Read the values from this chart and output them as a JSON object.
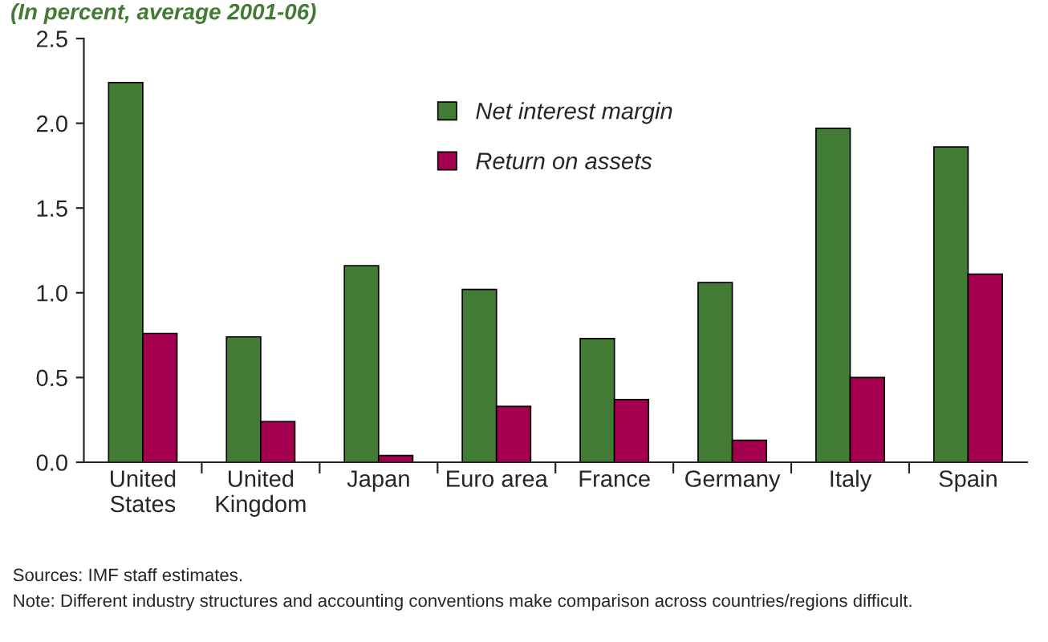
{
  "chart_data": {
    "type": "bar",
    "subtitle": "(In percent, average 2001-06)",
    "categories": [
      "United\nStates",
      "United\nKingdom",
      "Japan",
      "Euro area",
      "France",
      "Germany",
      "Italy",
      "Spain"
    ],
    "series": [
      {
        "name": "Net interest margin",
        "color": "#427b33",
        "values": [
          2.24,
          0.74,
          1.16,
          1.02,
          0.73,
          1.06,
          1.97,
          1.86
        ]
      },
      {
        "name": "Return on assets",
        "color": "#a5004f",
        "values": [
          0.76,
          0.24,
          0.04,
          0.33,
          0.37,
          0.13,
          0.5,
          1.11
        ]
      }
    ],
    "ylim": [
      0,
      2.5
    ],
    "yticks": [
      {
        "value": 0,
        "label": "0.0"
      },
      {
        "value": 0.5,
        "label": "0.5"
      },
      {
        "value": 1,
        "label": "1.0"
      },
      {
        "value": 1.5,
        "label": "1.5"
      },
      {
        "value": 2,
        "label": "2.0"
      },
      {
        "value": 2.5,
        "label": "2.5"
      }
    ],
    "grid": false,
    "legend": "top",
    "annotations": [
      "Sources: IMF staff estimates.",
      "Note: Different industry structures and accounting conventions make comparison across countries/regions difficult."
    ]
  }
}
